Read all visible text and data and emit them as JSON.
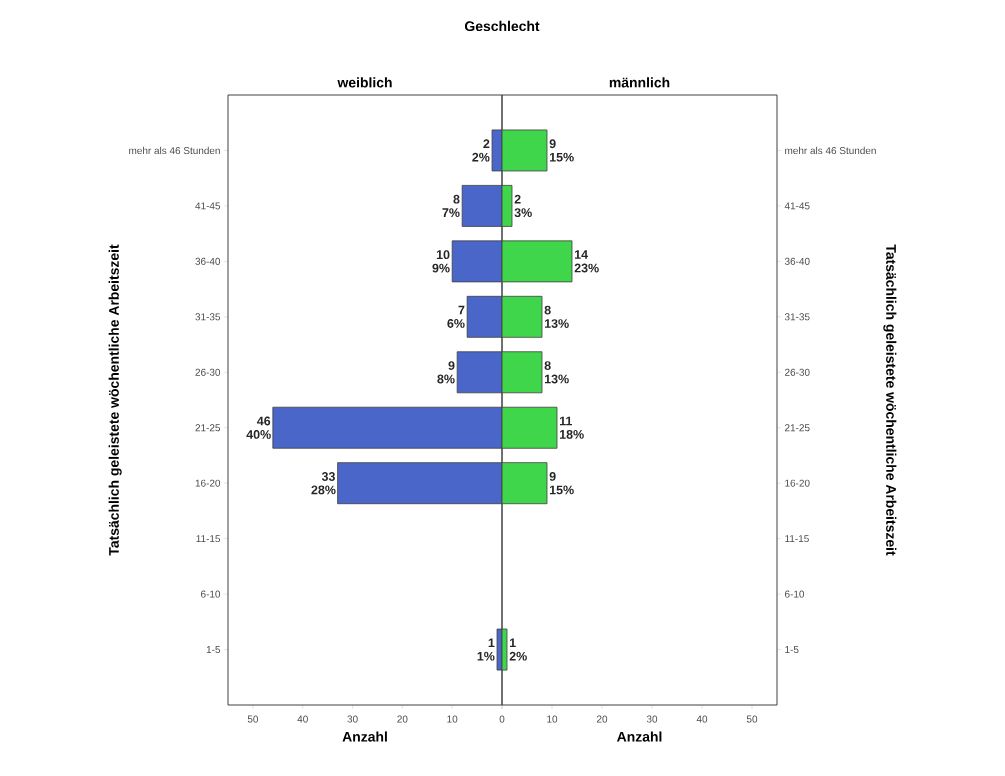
{
  "chart_data": [
    {
      "type": "bar",
      "orientation": "horizontal",
      "title": "weiblich",
      "xlabel": "Anzahl",
      "ylabel": "Tatsächlich geleistete wöchentliche Arbeitszeit",
      "annotations": [
        "Geschlecht"
      ],
      "categories": [
        "mehr als 46 Stunden",
        "41-45",
        "36-40",
        "31-35",
        "26-30",
        "21-25",
        "16-20",
        "11-15",
        "6-10",
        "1-5"
      ],
      "values": [
        2,
        8,
        10,
        7,
        9,
        46,
        33,
        null,
        null,
        1
      ],
      "value_labels": [
        "2 2%",
        "8 7%",
        "10 9%",
        "7 6%",
        "9 8%",
        "46 40%",
        "33 28%",
        null,
        null,
        "1 1%"
      ],
      "color": "#4a66c9",
      "xlim": [
        55,
        0
      ],
      "xticks": [
        0,
        10,
        20,
        30,
        40,
        50
      ]
    },
    {
      "type": "bar",
      "orientation": "horizontal",
      "title": "männlich",
      "xlabel": "Anzahl",
      "y2label": "Tatsächlich geleistete wöchentliche Arbeitszeit",
      "categories": [
        "mehr als 46 Stunden",
        "41-45",
        "36-40",
        "31-35",
        "26-30",
        "21-25",
        "16-20",
        "11-15",
        "6-10",
        "1-5"
      ],
      "values": [
        9,
        2,
        14,
        8,
        8,
        11,
        9,
        null,
        null,
        1
      ],
      "value_labels": [
        "9 15%",
        "2 3%",
        "14 23%",
        "8 13%",
        "8 13%",
        "11 18%",
        "9 15%",
        null,
        null,
        "1 2%"
      ],
      "color": "#40d64c",
      "xlim": [
        0,
        55
      ],
      "xticks": [
        {
          "value": 0,
          "label": null
        },
        10,
        20,
        30,
        40,
        50
      ]
    }
  ]
}
